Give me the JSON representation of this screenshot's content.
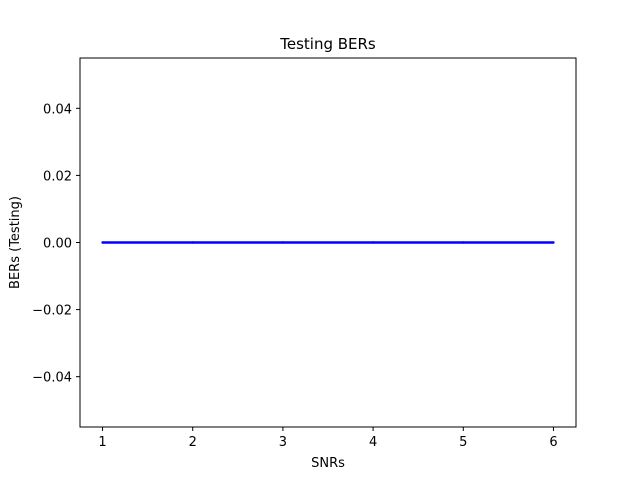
{
  "chart_data": {
    "type": "line",
    "title": "Testing BERs",
    "xlabel": "SNRs",
    "ylabel": "BERs (Testing)",
    "x": [
      1,
      2,
      3,
      4,
      5,
      6
    ],
    "series": [
      {
        "values": [
          0.0,
          0.0,
          0.0,
          0.0,
          0.0,
          0.0
        ],
        "color": "#0000ff"
      }
    ],
    "xlim": [
      0.75,
      6.25
    ],
    "ylim": [
      -0.055,
      0.055
    ],
    "xticks": [
      1,
      2,
      3,
      4,
      5,
      6
    ],
    "xtick_labels": [
      "1",
      "2",
      "3",
      "4",
      "5",
      "6"
    ],
    "yticks": [
      -0.04,
      -0.02,
      0.0,
      0.02,
      0.04
    ],
    "ytick_labels": [
      "−0.04",
      "−0.02",
      "0.00",
      "0.02",
      "0.04"
    ],
    "grid": false,
    "legend": false
  }
}
